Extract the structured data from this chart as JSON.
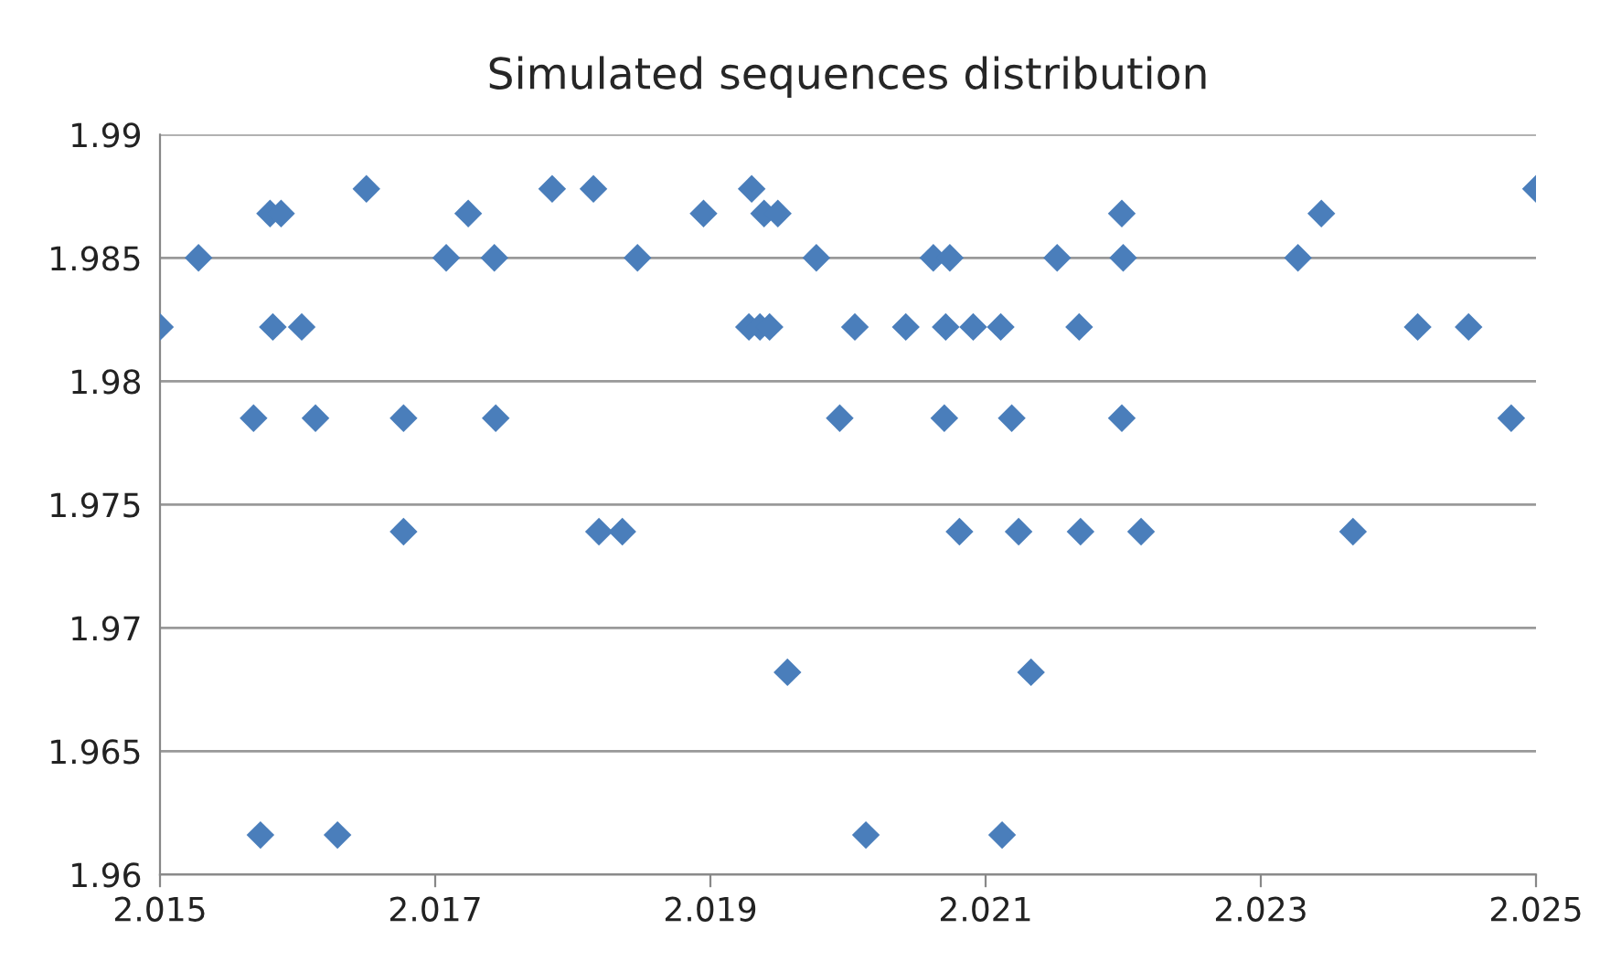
{
  "chart_data": {
    "type": "scatter",
    "title": "Simulated sequences distribution",
    "marker": "diamond",
    "grid": "y",
    "xlim": [
      2.015,
      2.025
    ],
    "xticks": [
      2.015,
      2.017,
      2.019,
      2.021,
      2.023,
      2.025
    ],
    "ylim": [
      1.96,
      1.99
    ],
    "yticks": [
      1.96,
      1.965,
      1.97,
      1.975,
      1.98,
      1.985,
      1.99
    ],
    "series": [
      {
        "color": "#4a7ebb",
        "x": [
          2.015,
          2.01528,
          2.01568,
          2.01573,
          2.0158,
          2.01588,
          2.01582,
          2.01603,
          2.01613,
          2.01629,
          2.0165,
          2.01677,
          2.01677,
          2.01708,
          2.01724,
          2.01743,
          2.01744,
          2.01785,
          2.01815,
          2.01847,
          2.01819,
          2.01836,
          2.01895,
          2.01939,
          2.01949,
          2.0193,
          2.01928,
          2.01936,
          2.01943,
          2.01956,
          2.01977,
          2.01994,
          2.02005,
          2.02013,
          2.02042,
          2.02062,
          2.02074,
          2.02071,
          2.0207,
          2.02081,
          2.02091,
          2.02111,
          2.02112,
          2.02119,
          2.02124,
          2.02133,
          2.02152,
          2.02168,
          2.02169,
          2.022,
          2.02199,
          2.02199,
          2.02213,
          2.02327,
          2.02344,
          2.02367,
          2.02414,
          2.02451,
          2.02482,
          2.025
        ],
        "values": [
          1.9822,
          1.985,
          1.9785,
          1.9616,
          1.9868,
          1.9868,
          1.9822,
          1.9822,
          1.9785,
          1.9616,
          1.9878,
          1.9785,
          1.9739,
          1.985,
          1.9868,
          1.985,
          1.9785,
          1.9878,
          1.9878,
          1.985,
          1.9739,
          1.9739,
          1.9868,
          1.9868,
          1.9868,
          1.9878,
          1.9822,
          1.9822,
          1.9822,
          1.9682,
          1.985,
          1.9785,
          1.9822,
          1.9616,
          1.9822,
          1.985,
          1.985,
          1.9822,
          1.9785,
          1.9739,
          1.9822,
          1.9822,
          1.9616,
          1.9785,
          1.9739,
          1.9682,
          1.985,
          1.9822,
          1.9739,
          1.985,
          1.9868,
          1.9785,
          1.9739,
          1.985,
          1.9868,
          1.9739,
          1.9822,
          1.9822,
          1.9785,
          1.9878
        ]
      }
    ]
  }
}
